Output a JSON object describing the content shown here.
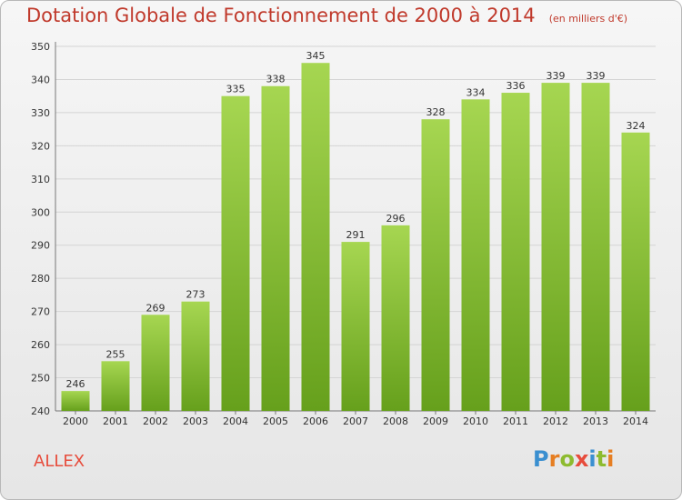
{
  "header": {
    "title": "Dotation Globale de Fonctionnement de 2000 à 2014",
    "unit_note": "(en milliers d'€)"
  },
  "footer": {
    "commune": "ALLEX",
    "brand": "Proxiti"
  },
  "colors": {
    "title": "#c0392b",
    "bar_light": "#9fd04a",
    "bar_dark": "#6aa51f",
    "grid": "#d4d4d4"
  },
  "chart_data": {
    "type": "bar",
    "title": "Dotation Globale de Fonctionnement de 2000 à 2014",
    "subtitle": "(en milliers d'€)",
    "xlabel": "",
    "ylabel": "",
    "categories": [
      "2000",
      "2001",
      "2002",
      "2003",
      "2004",
      "2005",
      "2006",
      "2007",
      "2008",
      "2009",
      "2010",
      "2011",
      "2012",
      "2013",
      "2014"
    ],
    "values": [
      246,
      255,
      269,
      273,
      335,
      338,
      345,
      291,
      296,
      328,
      334,
      336,
      339,
      339,
      324
    ],
    "ylim": [
      240,
      350
    ],
    "yticks": [
      240,
      250,
      260,
      270,
      280,
      290,
      300,
      310,
      320,
      330,
      340,
      350
    ],
    "grid": true,
    "legend": "none"
  }
}
